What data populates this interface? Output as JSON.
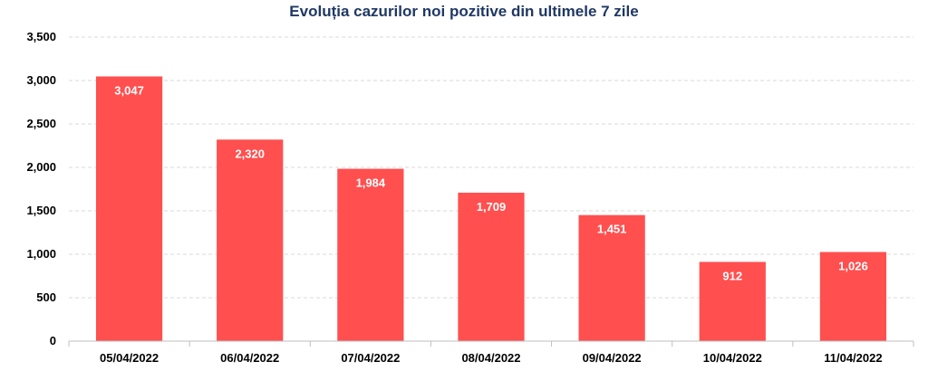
{
  "chart_data": {
    "type": "bar",
    "title": "Evoluția cazurilor noi pozitive din ultimele 7 zile",
    "xlabel": "",
    "ylabel": "",
    "categories": [
      "05/04/2022",
      "06/04/2022",
      "07/04/2022",
      "08/04/2022",
      "09/04/2022",
      "10/04/2022",
      "11/04/2022"
    ],
    "values": [
      3047,
      2320,
      1984,
      1709,
      1451,
      912,
      1026
    ],
    "data_labels": [
      "3,047",
      "2,320",
      "1,984",
      "1,709",
      "1,451",
      "912",
      "1,026"
    ],
    "ylim": [
      0,
      3500
    ],
    "yticks": [
      0,
      500,
      1000,
      1500,
      2000,
      2500,
      3000,
      3500
    ],
    "ytick_labels": [
      "0",
      "500",
      "1,000",
      "1,500",
      "2,000",
      "2,500",
      "3,000",
      "3,500"
    ],
    "grid": true,
    "legend": "none",
    "colors": {
      "bar": "#ff4f4f",
      "title": "#1f3864",
      "grid": "#d9d9d9",
      "axis": "#bfbfbf"
    }
  }
}
